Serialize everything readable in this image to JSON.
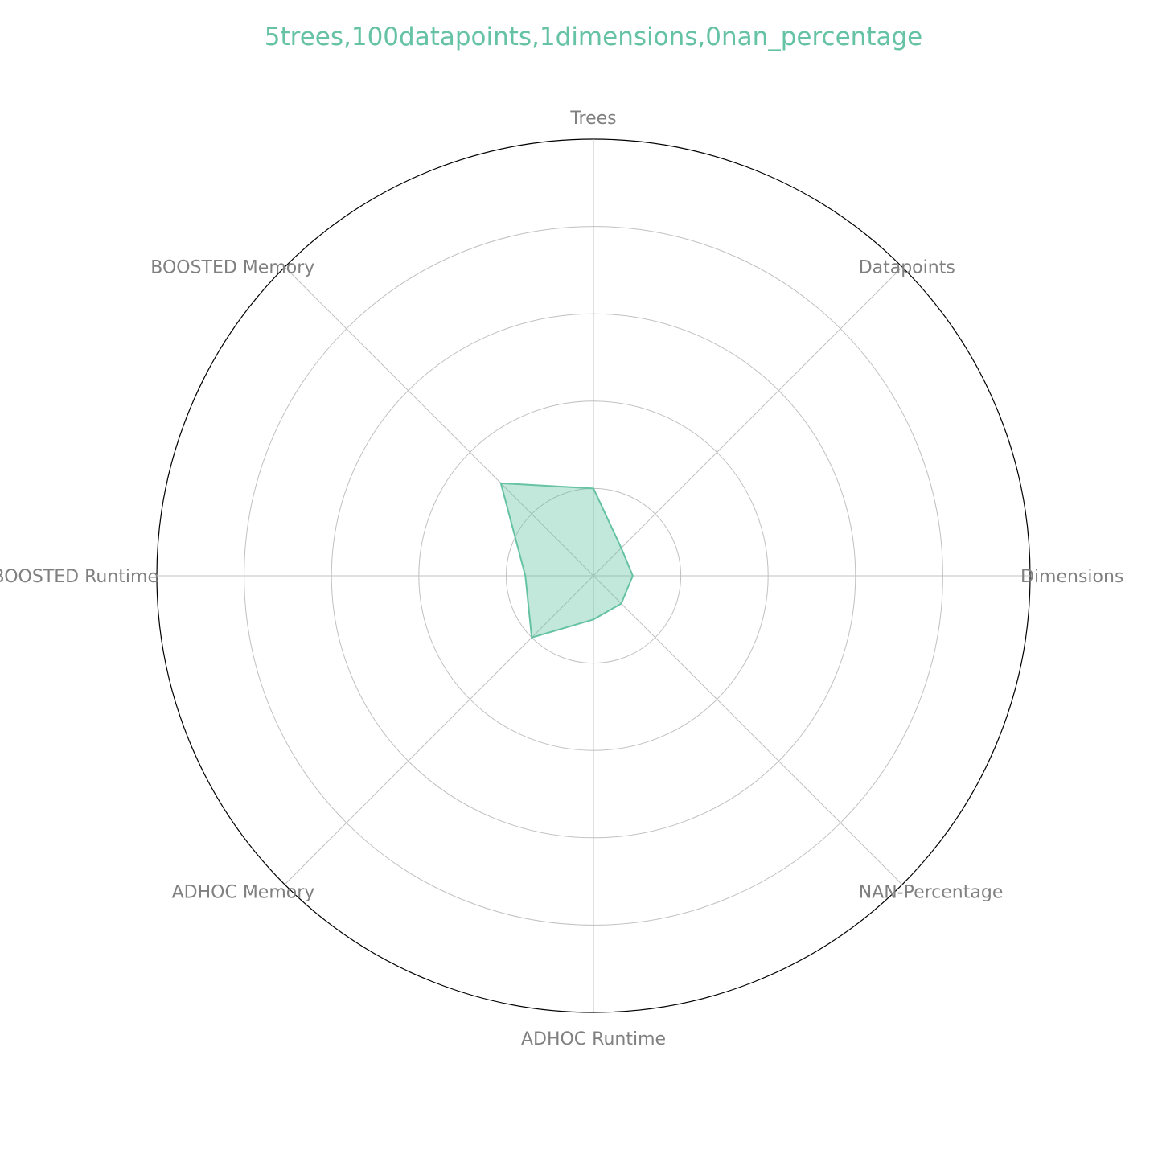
{
  "chart_data": {
    "type": "radar",
    "title": "5trees,100datapoints,1dimensions,0nan_percentage",
    "axes": [
      "Trees",
      "Datapoints",
      "Dimensions",
      "NAN-Percentage",
      "ADHOC Runtime",
      "ADHOC Memory",
      "BOOSTED Runtime",
      "BOOSTED Memory"
    ],
    "series": [
      {
        "values": [
          0.2,
          0.09,
          0.09,
          0.09,
          0.1,
          0.2,
          0.156,
          0.3
        ]
      }
    ],
    "rlim": [
      0,
      1
    ],
    "rgrid": [
      0.2,
      0.4,
      0.6,
      0.8,
      1.0
    ],
    "grid": true,
    "tick_labels_visible": false
  },
  "colors": {
    "series": "#66c2a5",
    "grid": "#c0c0c0",
    "spine": "#000000",
    "label": "#808080"
  }
}
